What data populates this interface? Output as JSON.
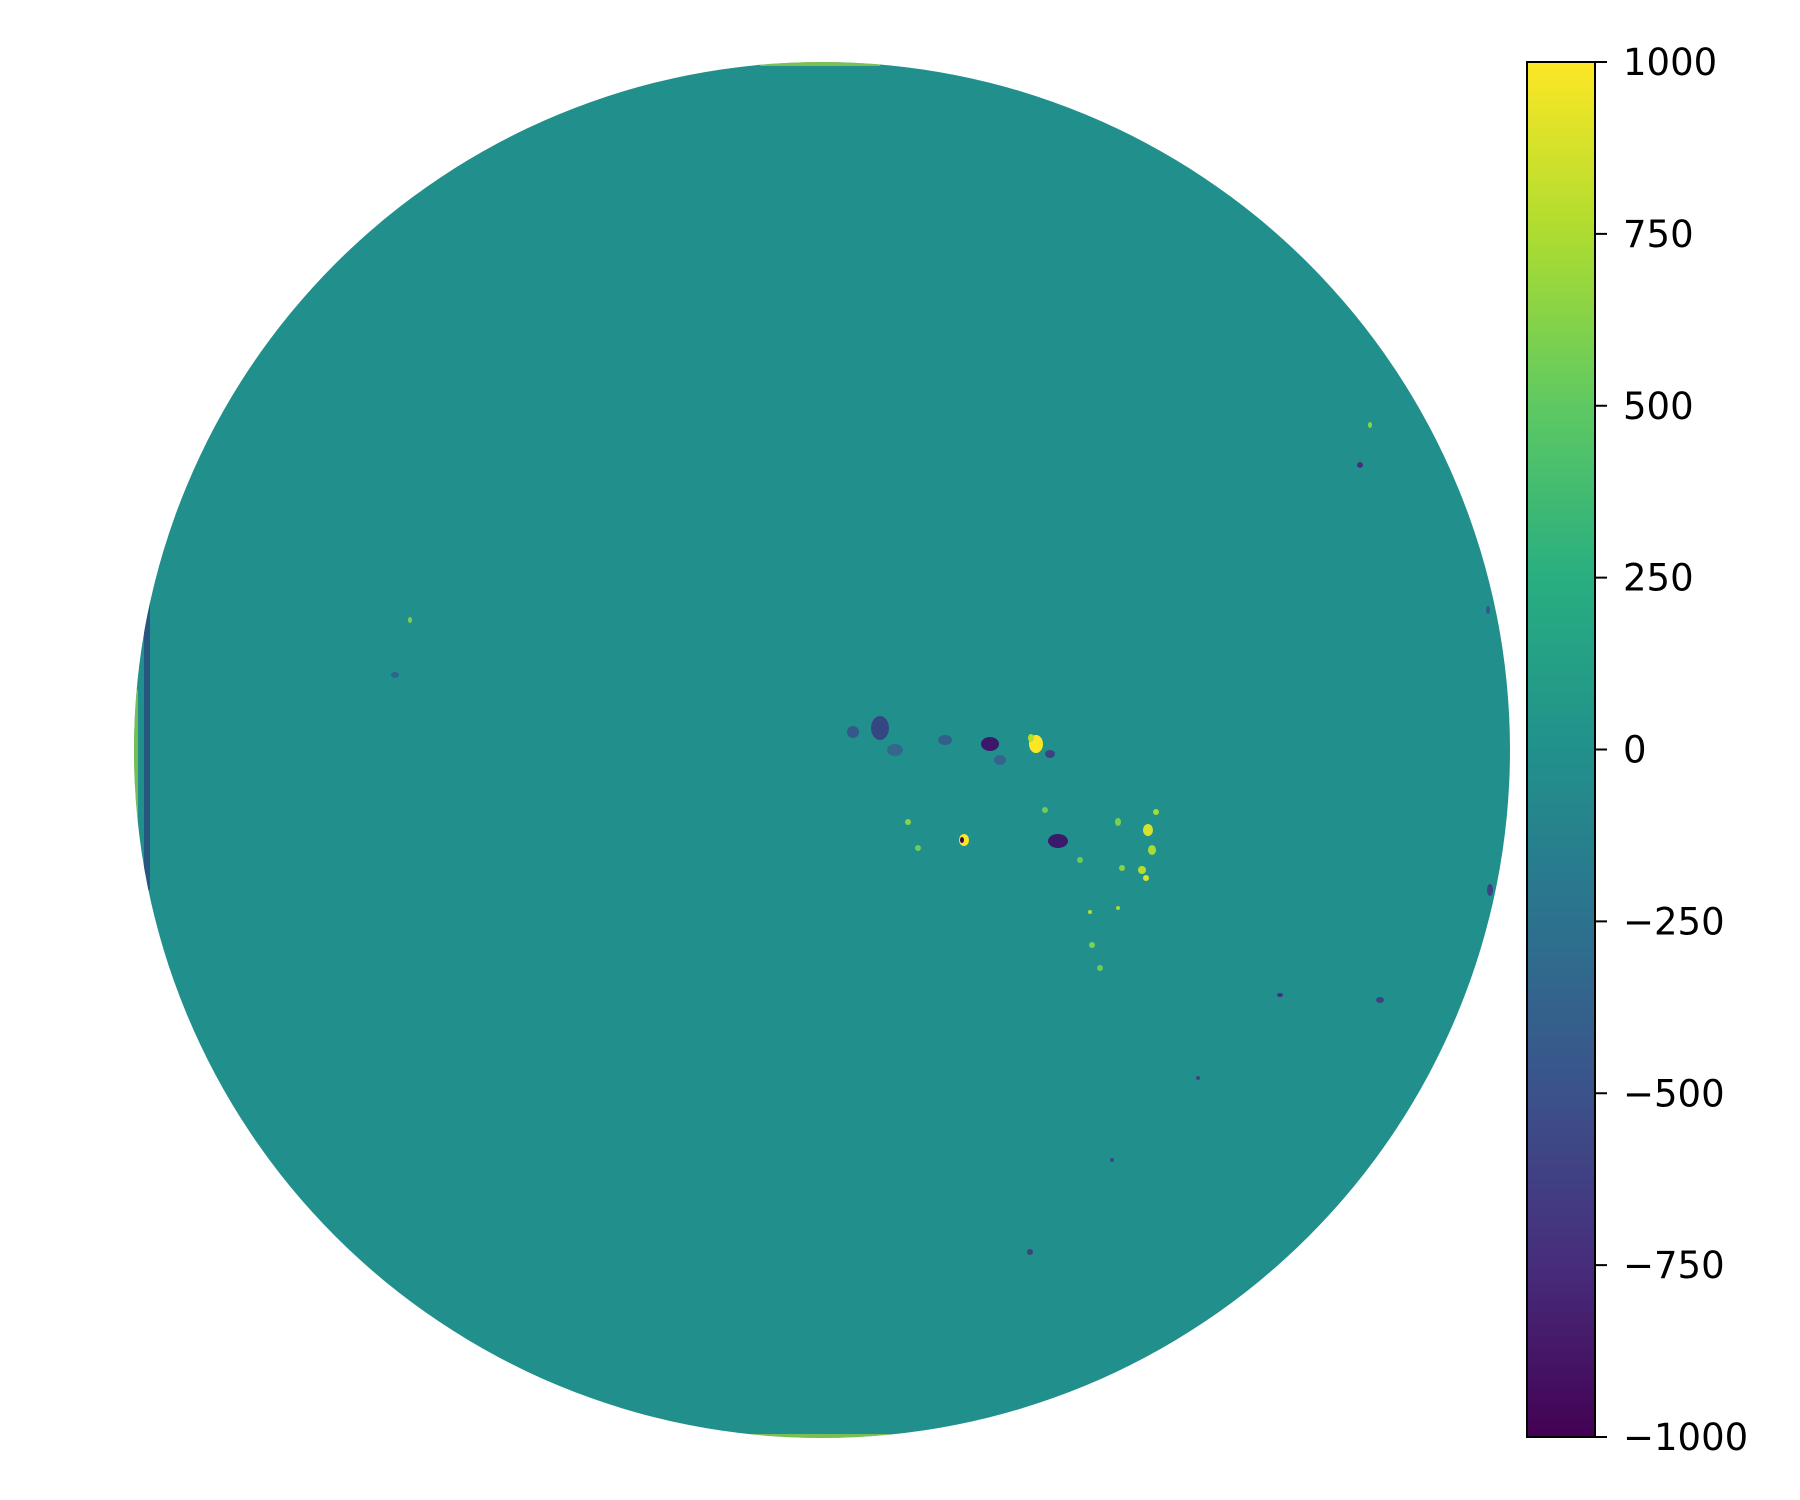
{
  "image": {
    "subject": "full-disk magnetogram",
    "colormap": "viridis",
    "background_color": "#ffffff",
    "disk_background_color": "#21908c"
  },
  "colorbar": {
    "min": -1000,
    "max": 1000,
    "ticks": [
      {
        "value": 1000,
        "label": "1000"
      },
      {
        "value": 750,
        "label": "750"
      },
      {
        "value": 500,
        "label": "500"
      },
      {
        "value": 250,
        "label": "250"
      },
      {
        "value": 0,
        "label": "0"
      },
      {
        "value": -250,
        "label": "−250"
      },
      {
        "value": -500,
        "label": "−500"
      },
      {
        "value": -750,
        "label": "−750"
      },
      {
        "value": -1000,
        "label": "−1000"
      }
    ],
    "stops": [
      "#440154",
      "#472d7b",
      "#3b528b",
      "#2c728e",
      "#21918c",
      "#28ae80",
      "#5ec962",
      "#addc30",
      "#fde725"
    ]
  }
}
